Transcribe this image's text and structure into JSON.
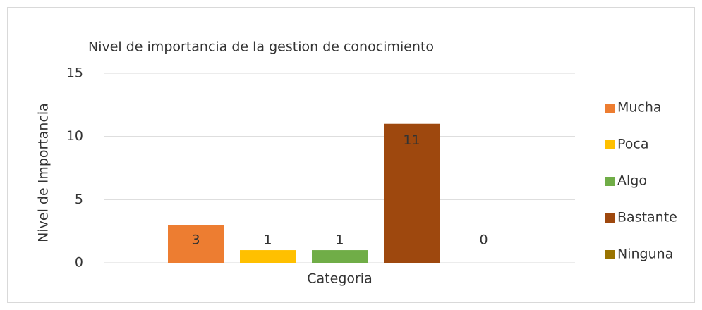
{
  "chart_data": {
    "type": "bar",
    "title": "Nivel de importancia de la gestion de conocimiento",
    "categories": [
      "Categoria"
    ],
    "ylabel": "Nivel de Importancia",
    "series": [
      {
        "name": "Mucha",
        "color": "#ed7d31",
        "values": [
          3
        ]
      },
      {
        "name": "Poca",
        "color": "#ffc000",
        "values": [
          1
        ]
      },
      {
        "name": "Algo",
        "color": "#70ad47",
        "values": [
          1
        ]
      },
      {
        "name": "Bastante",
        "color": "#9e480e",
        "values": [
          11
        ]
      },
      {
        "name": "Ninguna",
        "color": "#997300",
        "values": [
          0
        ]
      }
    ],
    "ylim": [
      0,
      15
    ],
    "yticks": [
      0,
      5,
      10,
      15
    ],
    "grid": true,
    "legend": "right"
  }
}
